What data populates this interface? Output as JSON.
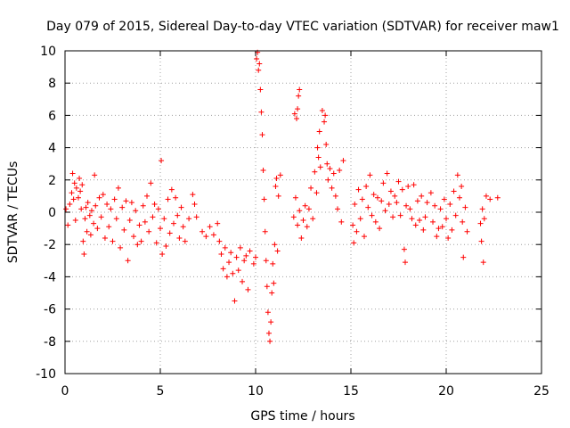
{
  "chart_data": {
    "type": "scatter",
    "title": "Day 079 of 2015, Sidereal Day-to-day VTEC variation (SDTVAR) for receiver maw1",
    "xlabel": "GPS time / hours",
    "ylabel": "SDTVAR / TECUs",
    "xlim": [
      0,
      25
    ],
    "ylim": [
      -10,
      10
    ],
    "xticks": [
      "0",
      "5",
      "10",
      "15",
      "20",
      "25"
    ],
    "yticks": [
      "-10",
      "-8",
      "-6",
      "-4",
      "-2",
      "0",
      "2",
      "4",
      "6",
      "8",
      "10"
    ],
    "grid": true,
    "marker": "+",
    "marker_color": "#ff0000",
    "series": [
      {
        "name": "SDTVAR",
        "points": [
          [
            0.05,
            0.2
          ],
          [
            0.15,
            -0.8
          ],
          [
            0.25,
            0.5
          ],
          [
            0.35,
            1.2
          ],
          [
            0.4,
            2.4
          ],
          [
            0.45,
            0.8
          ],
          [
            0.5,
            1.8
          ],
          [
            0.55,
            -0.5
          ],
          [
            0.6,
            1.5
          ],
          [
            0.7,
            0.9
          ],
          [
            0.75,
            2.1
          ],
          [
            0.8,
            1.3
          ],
          [
            0.85,
            0.2
          ],
          [
            0.9,
            1.7
          ],
          [
            0.95,
            -1.8
          ],
          [
            1.0,
            -2.6
          ],
          [
            1.05,
            -0.4
          ],
          [
            1.1,
            0.3
          ],
          [
            1.15,
            -1.2
          ],
          [
            1.2,
            0.6
          ],
          [
            1.3,
            -0.2
          ],
          [
            1.35,
            -1.4
          ],
          [
            1.4,
            0.1
          ],
          [
            1.5,
            -0.7
          ],
          [
            1.55,
            2.3
          ],
          [
            1.6,
            0.4
          ],
          [
            1.7,
            -1.0
          ],
          [
            1.8,
            0.9
          ],
          [
            1.9,
            -0.3
          ],
          [
            2.0,
            1.1
          ],
          [
            2.1,
            -1.6
          ],
          [
            2.2,
            0.5
          ],
          [
            2.3,
            -0.9
          ],
          [
            2.4,
            0.2
          ],
          [
            2.5,
            -1.8
          ],
          [
            2.6,
            0.8
          ],
          [
            2.7,
            -0.4
          ],
          [
            2.8,
            1.5
          ],
          [
            2.9,
            -2.2
          ],
          [
            3.0,
            0.3
          ],
          [
            3.1,
            -1.1
          ],
          [
            3.2,
            0.7
          ],
          [
            3.3,
            -3.0
          ],
          [
            3.4,
            -0.5
          ],
          [
            3.5,
            0.6
          ],
          [
            3.6,
            -1.5
          ],
          [
            3.7,
            0.1
          ],
          [
            3.8,
            -2.0
          ],
          [
            3.9,
            -0.8
          ],
          [
            4.0,
            -1.8
          ],
          [
            4.1,
            0.4
          ],
          [
            4.2,
            -0.6
          ],
          [
            4.3,
            1.0
          ],
          [
            4.4,
            -1.2
          ],
          [
            4.5,
            1.8
          ],
          [
            4.6,
            -0.3
          ],
          [
            4.7,
            0.5
          ],
          [
            4.8,
            -1.9
          ],
          [
            4.9,
            0.2
          ],
          [
            5.0,
            -1.0
          ],
          [
            5.05,
            3.2
          ],
          [
            5.1,
            -2.6
          ],
          [
            5.2,
            -0.4
          ],
          [
            5.3,
            -2.1
          ],
          [
            5.4,
            0.8
          ],
          [
            5.5,
            -1.3
          ],
          [
            5.6,
            1.4
          ],
          [
            5.7,
            -0.7
          ],
          [
            5.8,
            0.9
          ],
          [
            5.9,
            -0.2
          ],
          [
            6.0,
            -1.6
          ],
          [
            6.1,
            0.3
          ],
          [
            6.2,
            -0.9
          ],
          [
            6.3,
            -1.8
          ],
          [
            6.5,
            -0.4
          ],
          [
            6.7,
            1.1
          ],
          [
            6.8,
            0.5
          ],
          [
            6.9,
            -0.3
          ],
          [
            7.2,
            -1.2
          ],
          [
            7.4,
            -1.5
          ],
          [
            7.6,
            -0.9
          ],
          [
            7.8,
            -1.4
          ],
          [
            8.0,
            -0.7
          ],
          [
            8.1,
            -1.8
          ],
          [
            8.2,
            -2.6
          ],
          [
            8.3,
            -3.5
          ],
          [
            8.4,
            -2.2
          ],
          [
            8.5,
            -4.0
          ],
          [
            8.6,
            -3.1
          ],
          [
            8.7,
            -2.5
          ],
          [
            8.8,
            -3.8
          ],
          [
            8.9,
            -5.5
          ],
          [
            9.0,
            -2.8
          ],
          [
            9.1,
            -3.6
          ],
          [
            9.2,
            -2.2
          ],
          [
            9.3,
            -4.3
          ],
          [
            9.4,
            -3.0
          ],
          [
            9.5,
            -2.7
          ],
          [
            9.6,
            -4.8
          ],
          [
            9.7,
            -2.4
          ],
          [
            9.9,
            -3.2
          ],
          [
            10.0,
            -2.8
          ],
          [
            10.05,
            9.5
          ],
          [
            10.1,
            9.9
          ],
          [
            10.15,
            8.8
          ],
          [
            10.2,
            9.2
          ],
          [
            10.25,
            7.6
          ],
          [
            10.3,
            6.2
          ],
          [
            10.35,
            4.8
          ],
          [
            10.4,
            2.6
          ],
          [
            10.45,
            0.8
          ],
          [
            10.5,
            -1.2
          ],
          [
            10.55,
            -3.0
          ],
          [
            10.6,
            -4.6
          ],
          [
            10.65,
            -6.2
          ],
          [
            10.7,
            -7.5
          ],
          [
            10.75,
            -8.0
          ],
          [
            10.8,
            -6.8
          ],
          [
            10.85,
            -5.0
          ],
          [
            10.9,
            -3.2
          ],
          [
            10.95,
            -4.4
          ],
          [
            11.0,
            -2.0
          ],
          [
            11.05,
            1.6
          ],
          [
            11.1,
            2.1
          ],
          [
            11.15,
            -2.4
          ],
          [
            11.2,
            1.0
          ],
          [
            11.3,
            2.3
          ],
          [
            12.0,
            -0.3
          ],
          [
            12.1,
            0.9
          ],
          [
            12.2,
            -0.8
          ],
          [
            12.3,
            0.1
          ],
          [
            12.4,
            -1.6
          ],
          [
            12.5,
            -0.5
          ],
          [
            12.6,
            0.4
          ],
          [
            12.7,
            -0.9
          ],
          [
            12.8,
            0.2
          ],
          [
            12.9,
            1.5
          ],
          [
            13.0,
            -0.4
          ],
          [
            12.05,
            6.1
          ],
          [
            12.15,
            5.8
          ],
          [
            12.25,
            7.2
          ],
          [
            12.3,
            7.6
          ],
          [
            12.2,
            6.4
          ],
          [
            13.1,
            2.5
          ],
          [
            13.2,
            1.2
          ],
          [
            13.25,
            4.0
          ],
          [
            13.3,
            3.4
          ],
          [
            13.35,
            5.0
          ],
          [
            13.4,
            2.8
          ],
          [
            13.5,
            6.3
          ],
          [
            13.6,
            5.6
          ],
          [
            13.65,
            6.0
          ],
          [
            13.7,
            4.2
          ],
          [
            13.75,
            3.0
          ],
          [
            13.8,
            2.0
          ],
          [
            13.9,
            2.7
          ],
          [
            14.0,
            1.5
          ],
          [
            14.1,
            2.4
          ],
          [
            14.2,
            1.0
          ],
          [
            14.3,
            0.2
          ],
          [
            14.4,
            2.6
          ],
          [
            14.5,
            -0.6
          ],
          [
            14.6,
            3.2
          ],
          [
            15.1,
            -0.8
          ],
          [
            15.15,
            -1.9
          ],
          [
            15.2,
            0.5
          ],
          [
            15.3,
            -1.2
          ],
          [
            15.4,
            1.4
          ],
          [
            15.5,
            -0.4
          ],
          [
            15.6,
            0.8
          ],
          [
            15.7,
            -1.5
          ],
          [
            15.8,
            1.6
          ],
          [
            15.9,
            0.3
          ],
          [
            16.0,
            2.3
          ],
          [
            16.1,
            -0.2
          ],
          [
            16.2,
            1.1
          ],
          [
            16.3,
            -0.6
          ],
          [
            16.4,
            0.9
          ],
          [
            16.5,
            -1.0
          ],
          [
            16.6,
            0.7
          ],
          [
            16.7,
            1.8
          ],
          [
            16.8,
            0.1
          ],
          [
            16.9,
            2.4
          ],
          [
            17.0,
            0.5
          ],
          [
            17.1,
            1.3
          ],
          [
            17.2,
            -0.3
          ],
          [
            17.3,
            1.0
          ],
          [
            17.4,
            0.6
          ],
          [
            17.5,
            1.9
          ],
          [
            17.6,
            -0.2
          ],
          [
            17.7,
            1.4
          ],
          [
            17.8,
            -2.3
          ],
          [
            17.85,
            -3.1
          ],
          [
            17.9,
            0.4
          ],
          [
            18.0,
            1.6
          ],
          [
            18.1,
            0.2
          ],
          [
            18.2,
            -0.4
          ],
          [
            18.3,
            1.7
          ],
          [
            18.4,
            -0.8
          ],
          [
            18.5,
            0.7
          ],
          [
            18.6,
            -0.5
          ],
          [
            18.7,
            1.0
          ],
          [
            18.8,
            -1.1
          ],
          [
            18.9,
            -0.3
          ],
          [
            19.0,
            0.6
          ],
          [
            19.2,
            1.2
          ],
          [
            19.3,
            -0.6
          ],
          [
            19.4,
            0.4
          ],
          [
            19.5,
            -1.5
          ],
          [
            19.6,
            -1.0
          ],
          [
            19.7,
            0.2
          ],
          [
            19.8,
            -0.9
          ],
          [
            19.9,
            0.8
          ],
          [
            20.0,
            -0.4
          ],
          [
            20.1,
            -1.6
          ],
          [
            20.2,
            0.5
          ],
          [
            20.3,
            -1.1
          ],
          [
            20.4,
            1.3
          ],
          [
            20.5,
            -0.2
          ],
          [
            20.6,
            2.3
          ],
          [
            20.7,
            0.9
          ],
          [
            20.8,
            1.6
          ],
          [
            20.85,
            -0.6
          ],
          [
            20.9,
            -2.8
          ],
          [
            21.0,
            0.3
          ],
          [
            21.1,
            -1.2
          ],
          [
            21.8,
            -0.7
          ],
          [
            21.85,
            -1.8
          ],
          [
            21.9,
            0.2
          ],
          [
            21.95,
            -3.1
          ],
          [
            22.0,
            -0.4
          ],
          [
            22.1,
            1.0
          ],
          [
            22.3,
            0.8
          ],
          [
            22.7,
            0.9
          ]
        ]
      }
    ]
  }
}
